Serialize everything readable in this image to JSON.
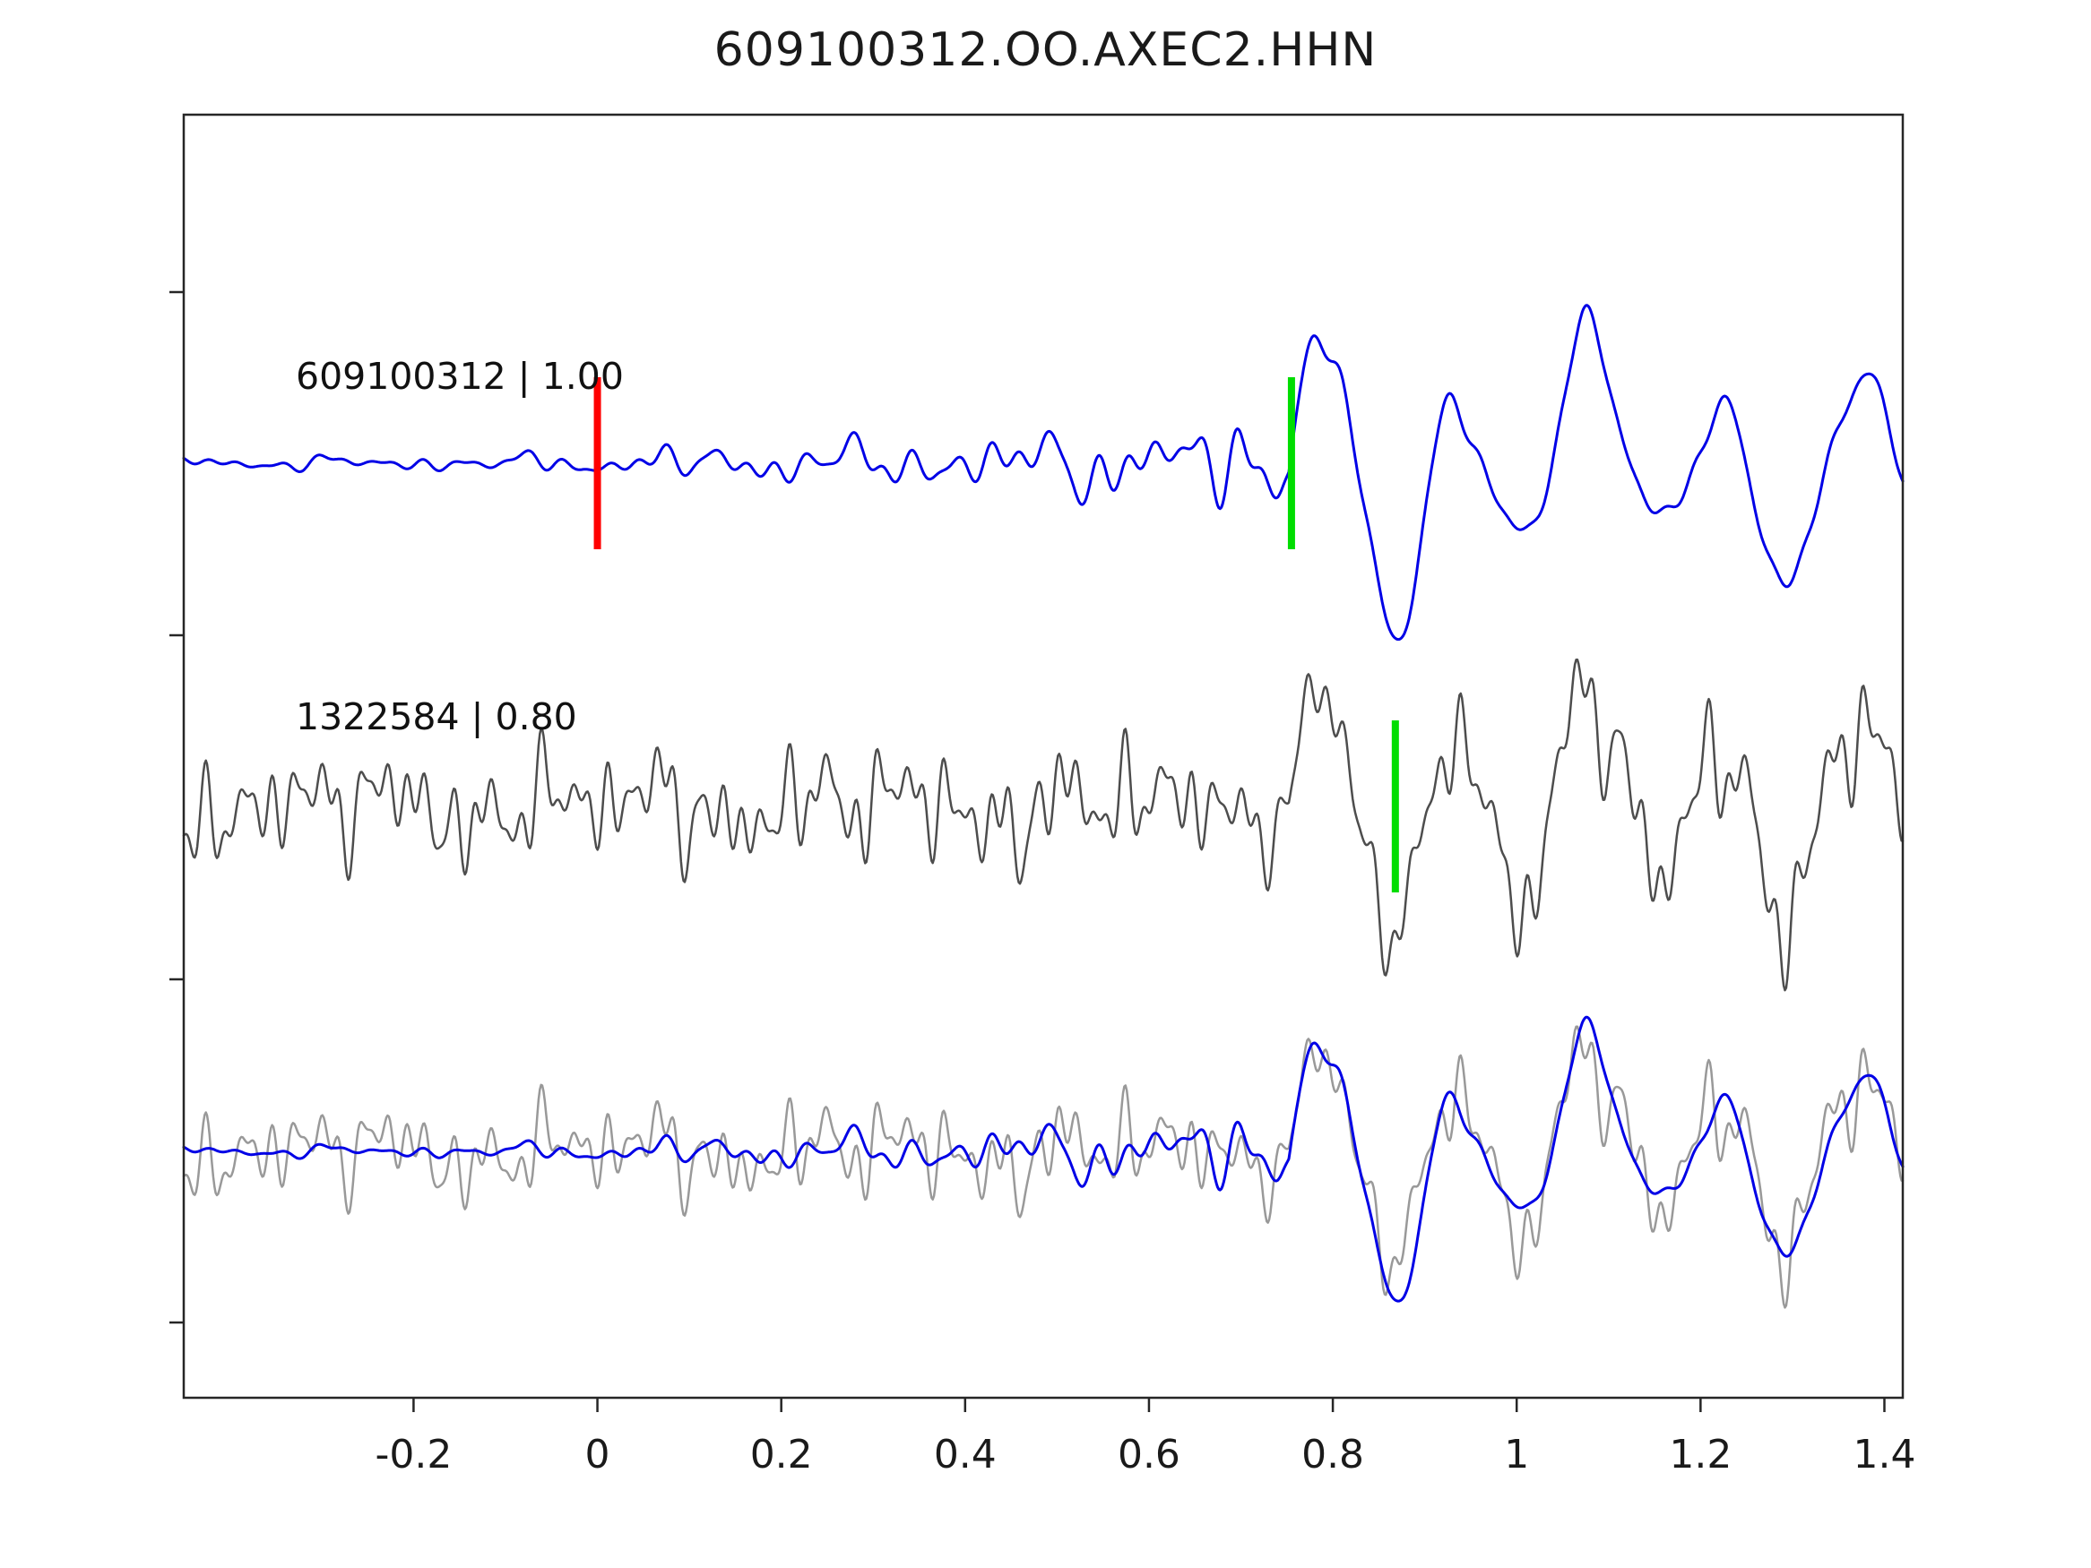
{
  "title": "609100312.OO.AXEC2.HHN",
  "chart_data": {
    "type": "line",
    "title": "609100312.OO.AXEC2.HHN",
    "subtitle": "",
    "xlabel": "",
    "ylabel": "",
    "xlim": [
      -0.45,
      1.42
    ],
    "x_ticks": [
      -0.2,
      0,
      0.2,
      0.4,
      0.6,
      0.8,
      1.0,
      1.2,
      1.4
    ],
    "x_tick_labels": [
      "-0.2",
      "0",
      "0.2",
      "0.4",
      "0.6",
      "0.8",
      "1",
      "1.2",
      "1.4"
    ],
    "grid": false,
    "legend_position": "none",
    "colors": {
      "template": "#0000e6",
      "detection": "#4d4d4d",
      "overlay_detection": "#999999",
      "pick_red": "#ff0000",
      "pick_green": "#00dd00",
      "axis": "#262626",
      "background": "#ffffff",
      "text": "#1a1a1a"
    },
    "traces": [
      {
        "id": "template",
        "label": "609100312 | 1.00",
        "description": "Template waveform 609100312 with correlation value 1.00; red pick at t=0, green pick at phase onset",
        "row": 0,
        "color_key": "template",
        "picks": [
          {
            "x": 0.0,
            "color_key": "pick_red",
            "name": "template-pick-red"
          },
          {
            "x": 0.755,
            "color_key": "pick_green",
            "name": "template-pick-green"
          }
        ]
      },
      {
        "id": "detection",
        "label": "1322584 | 0.80",
        "description": "Detected waveform 1322584 with correlation value 0.80; green pick near t=0.87",
        "row": 1,
        "color_key": "detection",
        "picks": [
          {
            "x": 0.868,
            "color_key": "pick_green",
            "name": "detection-pick-green"
          }
        ]
      },
      {
        "id": "overlay",
        "label": "",
        "description": "Overlay of detection (gray) and template (blue) waveforms, aligned",
        "row": 2,
        "components": [
          {
            "source": "detection",
            "color_key": "overlay_detection",
            "scale": 0.85
          },
          {
            "source": "template",
            "color_key": "template",
            "scale": 0.85
          }
        ],
        "picks": []
      }
    ],
    "synthesis": {
      "seed": 20240612,
      "samples": 1400,
      "template": {
        "noise_freqs": [
          5.5,
          9,
          14,
          19,
          26,
          34
        ],
        "noise_amp_keypoints": [
          [
            -0.45,
            6
          ],
          [
            -0.1,
            8
          ],
          [
            0.1,
            16
          ],
          [
            0.3,
            22
          ],
          [
            0.5,
            30
          ],
          [
            0.68,
            42
          ],
          [
            0.74,
            36
          ],
          [
            0.82,
            14
          ],
          [
            1.42,
            12
          ]
        ],
        "arrival_time": 0.752,
        "arrival_amp": 185,
        "rise": 0.012,
        "decay": 0.3,
        "sustain": 0.5,
        "components": [
          {
            "freq": 6.9,
            "amp": 0.8,
            "phase": -0.08
          },
          {
            "freq": 2.7,
            "amp": 0.42,
            "phase": 2.2
          },
          {
            "freq": 12.5,
            "amp": 0.15,
            "phase": 1.3
          }
        ]
      },
      "detection": {
        "noise_freqs": [
          3.5,
          7,
          11,
          16,
          22,
          30,
          41,
          55
        ],
        "noise_amp_keypoints": [
          [
            -0.45,
            60
          ],
          [
            0.2,
            64
          ],
          [
            0.6,
            66
          ],
          [
            0.78,
            46
          ],
          [
            0.95,
            62
          ],
          [
            1.42,
            70
          ]
        ],
        "arrival_time": 0.752,
        "arrival_amp": 150,
        "rise": 0.012,
        "decay": 0.35,
        "sustain": 0.45,
        "components": [
          {
            "freq": 6.9,
            "amp": 0.85,
            "phase": -0.05
          },
          {
            "freq": 2.9,
            "amp": 0.35,
            "phase": 2.0
          },
          {
            "freq": 14.0,
            "amp": 0.22,
            "phase": 0.6
          }
        ]
      }
    },
    "layout_hints": {
      "rows": 3,
      "pick_marker_half_height_px": 96,
      "x_axis_side": "bottom",
      "y_axis_labels": "none"
    }
  }
}
